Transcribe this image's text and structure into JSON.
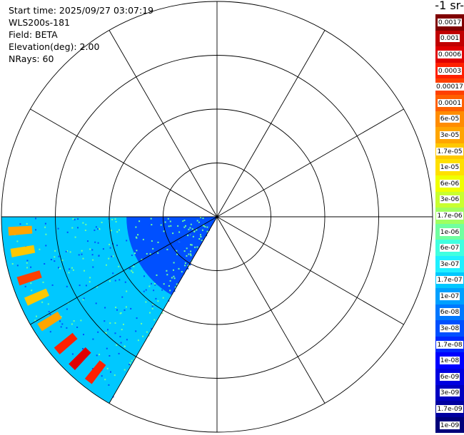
{
  "info": {
    "start_time": "Start time: 2025/09/27 03:07:19",
    "instrument": "WLS200s-181",
    "field": "Field: BETA",
    "elevation": "Elevation(deg): 2.00",
    "nrays": "NRays: 60"
  },
  "colorbar": {
    "title": "-1 sr-",
    "labels": [
      "0.0017",
      "0.001",
      "0.0006",
      "0.0003",
      "0.00017",
      "0.0001",
      "6e-05",
      "3e-05",
      "1.7e-05",
      "1e-05",
      "6e-06",
      "3e-06",
      "1.7e-06",
      "1e-06",
      "6e-07",
      "3e-07",
      "1.7e-07",
      "1e-07",
      "6e-08",
      "3e-08",
      "1.7e-08",
      "1e-08",
      "6e-09",
      "3e-09",
      "1.7e-09",
      "1e-09"
    ],
    "colors": [
      "#800000",
      "#c00000",
      "#e00000",
      "#ff2000",
      "#ff4000",
      "#ff6000",
      "#ff8c00",
      "#ffa500",
      "#ffc800",
      "#ffe000",
      "#f0ff00",
      "#c8ff30",
      "#a0ff60",
      "#70ffa0",
      "#40ffe0",
      "#20f0ff",
      "#00c8ff",
      "#00a0ff",
      "#0078ff",
      "#0050ff",
      "#0028ff",
      "#0000ff",
      "#0000e0",
      "#0000c0",
      "#0000a0",
      "#00007a"
    ]
  },
  "chart_data": {
    "type": "ppi",
    "field": "BETA",
    "elevation_deg": 2.0,
    "nrays": 60,
    "scale": "log",
    "range_min": 1e-09,
    "range_max": 0.0017,
    "sector_azimuth_deg": [
      210,
      270
    ],
    "background_beta": 1.7e-07,
    "near_range_beta": 3e-08,
    "far_edge_features": [
      {
        "azimuth_deg": 218,
        "beta": 0.0003
      },
      {
        "azimuth_deg": 224,
        "beta": 0.0006
      },
      {
        "azimuth_deg": 230,
        "beta": 0.0003
      },
      {
        "azimuth_deg": 238,
        "beta": 3e-05
      },
      {
        "azimuth_deg": 246,
        "beta": 1.7e-05
      },
      {
        "azimuth_deg": 252,
        "beta": 0.00017
      },
      {
        "azimuth_deg": 260,
        "beta": 1.7e-05
      },
      {
        "azimuth_deg": 266,
        "beta": 3e-05
      }
    ],
    "range_rings": 4,
    "radial_spokes": 12,
    "grid": true
  }
}
